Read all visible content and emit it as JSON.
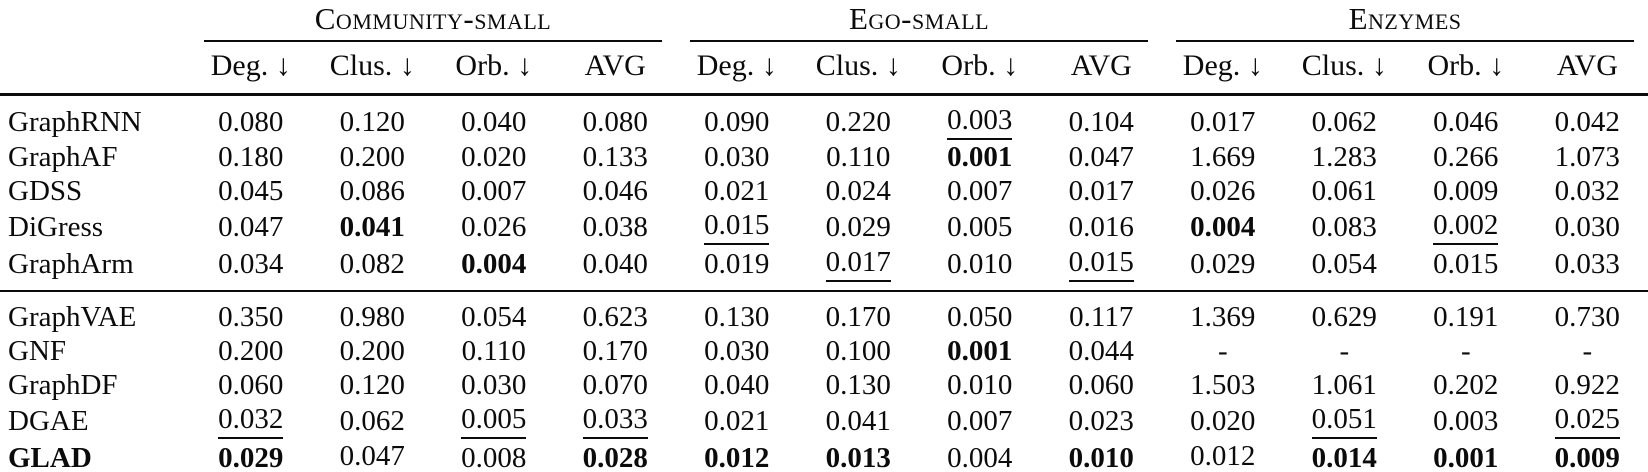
{
  "table": {
    "groups": [
      {
        "label": "Community-small"
      },
      {
        "label": "Ego-small"
      },
      {
        "label": "Enzymes"
      }
    ],
    "metric_headers": [
      "Deg. ↓",
      "Clus. ↓",
      "Orb. ↓",
      "AVG"
    ],
    "text_color": "#0b0b0b",
    "background_color": "#ffffff",
    "legend_semantics": {
      "bold": "best result",
      "underline": "second-best result"
    },
    "sections": [
      {
        "rows": [
          {
            "model": "GraphRNN",
            "cells": [
              {
                "v": "0.080"
              },
              {
                "v": "0.120"
              },
              {
                "v": "0.040"
              },
              {
                "v": "0.080"
              },
              {
                "v": "0.090"
              },
              {
                "v": "0.220"
              },
              {
                "v": "0.003",
                "u": true
              },
              {
                "v": "0.104"
              },
              {
                "v": "0.017"
              },
              {
                "v": "0.062"
              },
              {
                "v": "0.046"
              },
              {
                "v": "0.042"
              }
            ]
          },
          {
            "model": "GraphAF",
            "cells": [
              {
                "v": "0.180"
              },
              {
                "v": "0.200"
              },
              {
                "v": "0.020"
              },
              {
                "v": "0.133"
              },
              {
                "v": "0.030"
              },
              {
                "v": "0.110"
              },
              {
                "v": "0.001",
                "b": true
              },
              {
                "v": "0.047"
              },
              {
                "v": "1.669"
              },
              {
                "v": "1.283"
              },
              {
                "v": "0.266"
              },
              {
                "v": "1.073"
              }
            ]
          },
          {
            "model": "GDSS",
            "cells": [
              {
                "v": "0.045"
              },
              {
                "v": "0.086"
              },
              {
                "v": "0.007"
              },
              {
                "v": "0.046"
              },
              {
                "v": "0.021"
              },
              {
                "v": "0.024"
              },
              {
                "v": "0.007"
              },
              {
                "v": "0.017"
              },
              {
                "v": "0.026"
              },
              {
                "v": "0.061"
              },
              {
                "v": "0.009"
              },
              {
                "v": "0.032"
              }
            ]
          },
          {
            "model": "DiGress",
            "cells": [
              {
                "v": "0.047"
              },
              {
                "v": "0.041",
                "b": true
              },
              {
                "v": "0.026"
              },
              {
                "v": "0.038"
              },
              {
                "v": "0.015",
                "u": true
              },
              {
                "v": "0.029"
              },
              {
                "v": "0.005"
              },
              {
                "v": "0.016"
              },
              {
                "v": "0.004",
                "b": true
              },
              {
                "v": "0.083"
              },
              {
                "v": "0.002",
                "u": true
              },
              {
                "v": "0.030"
              }
            ]
          },
          {
            "model": "GraphArm",
            "cells": [
              {
                "v": "0.034"
              },
              {
                "v": "0.082"
              },
              {
                "v": "0.004",
                "b": true
              },
              {
                "v": "0.040"
              },
              {
                "v": "0.019"
              },
              {
                "v": "0.017",
                "u": true
              },
              {
                "v": "0.010"
              },
              {
                "v": "0.015",
                "u": true
              },
              {
                "v": "0.029"
              },
              {
                "v": "0.054"
              },
              {
                "v": "0.015"
              },
              {
                "v": "0.033"
              }
            ]
          }
        ]
      },
      {
        "rows": [
          {
            "model": "GraphVAE",
            "cells": [
              {
                "v": "0.350"
              },
              {
                "v": "0.980"
              },
              {
                "v": "0.054"
              },
              {
                "v": "0.623"
              },
              {
                "v": "0.130"
              },
              {
                "v": "0.170"
              },
              {
                "v": "0.050"
              },
              {
                "v": "0.117"
              },
              {
                "v": "1.369"
              },
              {
                "v": "0.629"
              },
              {
                "v": "0.191"
              },
              {
                "v": "0.730"
              }
            ]
          },
          {
            "model": "GNF",
            "cells": [
              {
                "v": "0.200"
              },
              {
                "v": "0.200"
              },
              {
                "v": "0.110"
              },
              {
                "v": "0.170"
              },
              {
                "v": "0.030"
              },
              {
                "v": "0.100"
              },
              {
                "v": "0.001",
                "b": true
              },
              {
                "v": "0.044"
              },
              {
                "v": "-"
              },
              {
                "v": "-"
              },
              {
                "v": "-"
              },
              {
                "v": "-"
              }
            ]
          },
          {
            "model": "GraphDF",
            "cells": [
              {
                "v": "0.060"
              },
              {
                "v": "0.120"
              },
              {
                "v": "0.030"
              },
              {
                "v": "0.070"
              },
              {
                "v": "0.040"
              },
              {
                "v": "0.130"
              },
              {
                "v": "0.010"
              },
              {
                "v": "0.060"
              },
              {
                "v": "1.503"
              },
              {
                "v": "1.061"
              },
              {
                "v": "0.202"
              },
              {
                "v": "0.922"
              }
            ]
          },
          {
            "model": "DGAE",
            "cells": [
              {
                "v": "0.032",
                "u": true
              },
              {
                "v": "0.062"
              },
              {
                "v": "0.005",
                "u": true
              },
              {
                "v": "0.033",
                "u": true
              },
              {
                "v": "0.021"
              },
              {
                "v": "0.041"
              },
              {
                "v": "0.007"
              },
              {
                "v": "0.023"
              },
              {
                "v": "0.020"
              },
              {
                "v": "0.051",
                "u": true
              },
              {
                "v": "0.003"
              },
              {
                "v": "0.025",
                "u": true
              }
            ]
          },
          {
            "model": "GLAD",
            "bold_label": true,
            "cells": [
              {
                "v": "0.029",
                "b": true
              },
              {
                "v": "0.047",
                "u": true
              },
              {
                "v": "0.008"
              },
              {
                "v": "0.028",
                "b": true
              },
              {
                "v": "0.012",
                "b": true
              },
              {
                "v": "0.013",
                "b": true
              },
              {
                "v": "0.004"
              },
              {
                "v": "0.010",
                "b": true
              },
              {
                "v": "0.012",
                "u": true
              },
              {
                "v": "0.014",
                "b": true
              },
              {
                "v": "0.001",
                "b": true
              },
              {
                "v": "0.009",
                "b": true
              }
            ]
          }
        ]
      }
    ]
  }
}
